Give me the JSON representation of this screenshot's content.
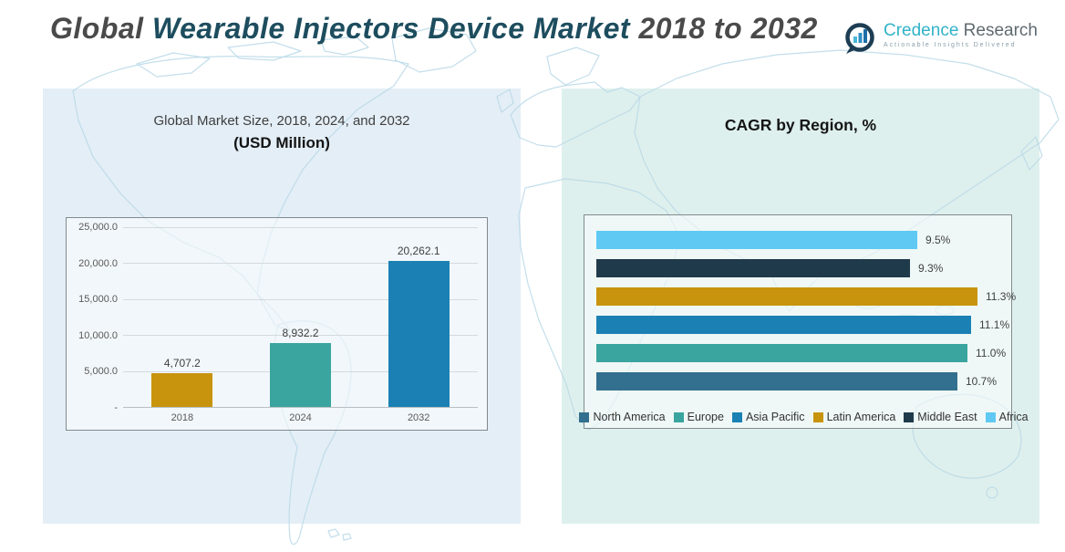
{
  "header": {
    "title_segment_1": "Global ",
    "title_segment_2": "Wearable Injectors Device Market ",
    "title_segment_3": "2018 to 2032",
    "title_color_gray": "#4a4a4a",
    "title_color_teal": "#1d4d5e"
  },
  "logo": {
    "brand_primary": "Credence",
    "brand_secondary": " Research",
    "tagline": "Actionable Insights Delivered",
    "brand_primary_color": "#31b3c9",
    "brand_secondary_color": "#5f6a70",
    "mark_color": "#1d3d52"
  },
  "chart_data": [
    {
      "type": "bar",
      "title": "Global Market Size, 2018, 2024, and 2032",
      "subtitle": "(USD Million)",
      "categories": [
        "2018",
        "2024",
        "2032"
      ],
      "values": [
        4707.2,
        8932.2,
        20262.1
      ],
      "data_labels": [
        "4,707.2",
        "8,932.2",
        "20,262.1"
      ],
      "bar_colors": [
        "#c8940e",
        "#3aa49f",
        "#1b81b4"
      ],
      "xlabel": "",
      "ylabel": "",
      "ylim": [
        0,
        25000
      ],
      "ytick_labels_top_down": [
        "25,000.0",
        "20,000.0",
        "15,000.0",
        "10,000.0",
        "5,000.0",
        "-"
      ],
      "grid": true,
      "legend_position": "none"
    },
    {
      "type": "bar-horizontal",
      "title": "CAGR by Region, %",
      "categories": [
        "Africa",
        "Middle East",
        "Latin America",
        "Asia Pacific",
        "Europe",
        "North America"
      ],
      "values": [
        9.5,
        9.3,
        11.3,
        11.1,
        11.0,
        10.7
      ],
      "data_labels": [
        "9.5%",
        "9.3%",
        "11.3%",
        "11.1%",
        "11.0%",
        "10.7%"
      ],
      "bar_colors": [
        "#5fc9f3",
        "#1f3a4b",
        "#c8940e",
        "#1b81b4",
        "#3aa49f",
        "#336f8e"
      ],
      "xlim": [
        0,
        12
      ],
      "grid": false,
      "legend_position": "bottom",
      "legend": [
        {
          "label": "North America",
          "color": "#336f8e"
        },
        {
          "label": "Europe",
          "color": "#3aa49f"
        },
        {
          "label": "Asia Pacific",
          "color": "#1b81b4"
        },
        {
          "label": "Latin America",
          "color": "#c8940e"
        },
        {
          "label": "Middle East",
          "color": "#1f3a4b"
        },
        {
          "label": "Africa",
          "color": "#5fc9f3"
        }
      ]
    }
  ]
}
